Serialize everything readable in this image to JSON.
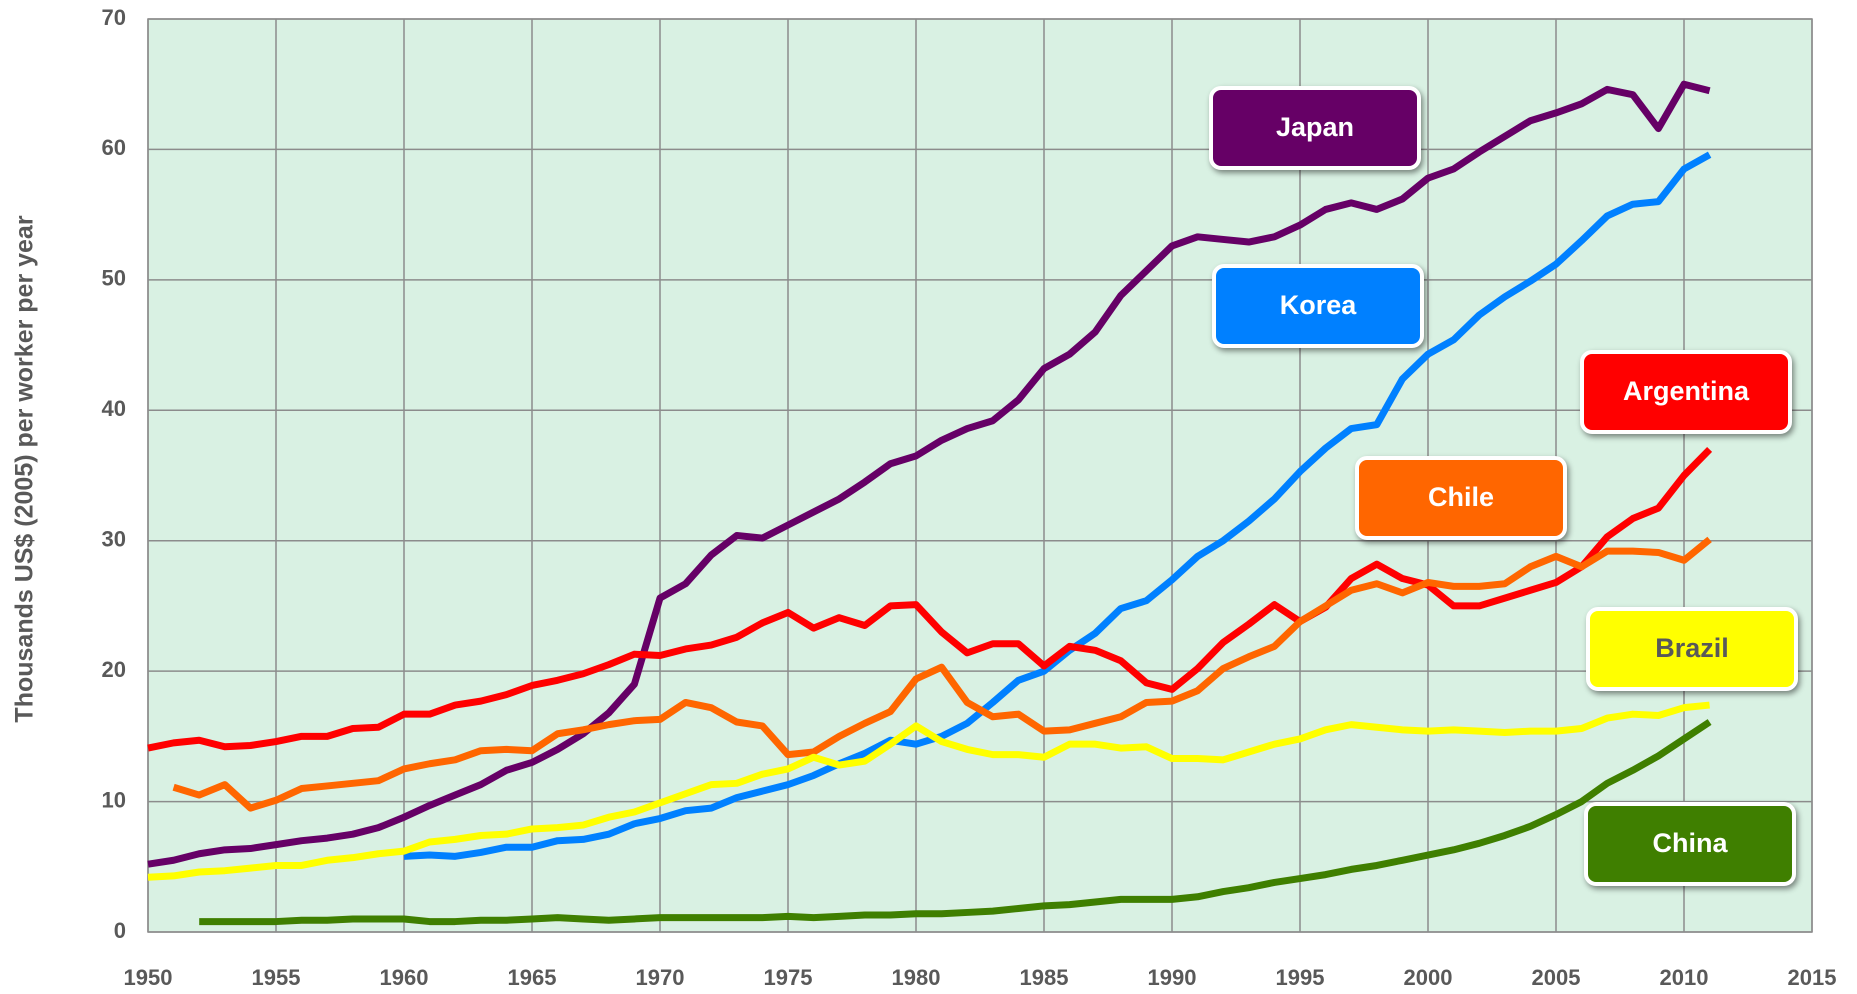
{
  "chart_data": {
    "type": "line",
    "ylabel": "Thousands US$ (2005) per worker per year",
    "xlim": [
      1950,
      2015
    ],
    "xticks": [
      1950,
      1955,
      1960,
      1965,
      1970,
      1975,
      1980,
      1985,
      1990,
      1995,
      2000,
      2005,
      2010,
      2015
    ],
    "ylim": [
      0,
      70
    ],
    "yticks": [
      0,
      10,
      20,
      30,
      40,
      50,
      60,
      70
    ],
    "grid": true,
    "x": [
      1950,
      1951,
      1952,
      1953,
      1954,
      1955,
      1956,
      1957,
      1958,
      1959,
      1960,
      1961,
      1962,
      1963,
      1964,
      1965,
      1966,
      1967,
      1968,
      1969,
      1970,
      1971,
      1972,
      1973,
      1974,
      1975,
      1976,
      1977,
      1978,
      1979,
      1980,
      1981,
      1982,
      1983,
      1984,
      1985,
      1986,
      1987,
      1988,
      1989,
      1990,
      1991,
      1992,
      1993,
      1994,
      1995,
      1996,
      1997,
      1998,
      1999,
      2000,
      2001,
      2002,
      2003,
      2004,
      2005,
      2006,
      2007,
      2008,
      2009,
      2010,
      2011
    ],
    "series": [
      {
        "name": "Japan",
        "color": "#660066",
        "values": [
          5.2,
          5.5,
          6.0,
          6.3,
          6.4,
          6.7,
          7.0,
          7.2,
          7.5,
          8.0,
          8.8,
          9.7,
          10.5,
          11.3,
          12.4,
          13.0,
          14.0,
          15.2,
          16.8,
          19.0,
          25.6,
          26.7,
          28.9,
          30.4,
          30.2,
          31.2,
          32.2,
          33.2,
          34.5,
          35.9,
          36.5,
          37.7,
          38.6,
          39.2,
          40.8,
          43.2,
          44.3,
          46.0,
          48.8,
          50.7,
          52.6,
          53.3,
          53.1,
          52.9,
          53.3,
          54.2,
          55.4,
          55.9,
          55.4,
          56.2,
          57.8,
          58.5,
          59.8,
          61.0,
          62.2,
          62.8,
          63.5,
          64.6,
          64.2,
          61.6,
          65.0,
          64.5
        ]
      },
      {
        "name": "Korea",
        "color": "#0080ff",
        "values": [
          null,
          null,
          null,
          null,
          null,
          null,
          null,
          null,
          null,
          null,
          5.8,
          5.9,
          5.8,
          6.1,
          6.5,
          6.5,
          7.0,
          7.1,
          7.5,
          8.3,
          8.7,
          9.3,
          9.5,
          10.3,
          10.8,
          11.3,
          12.0,
          12.9,
          13.7,
          14.7,
          14.4,
          15.0,
          16.0,
          17.6,
          19.3,
          20.0,
          21.6,
          22.9,
          24.8,
          25.4,
          27.0,
          28.8,
          30.0,
          31.5,
          33.2,
          35.3,
          37.1,
          38.6,
          38.9,
          42.4,
          44.3,
          45.4,
          47.3,
          48.7,
          49.9,
          51.2,
          53.0,
          54.9,
          55.8,
          56.0,
          58.5,
          59.6
        ]
      },
      {
        "name": "Argentina",
        "color": "#ff0000",
        "values": [
          14.1,
          14.5,
          14.7,
          14.2,
          14.3,
          14.6,
          15.0,
          15.0,
          15.6,
          15.7,
          16.7,
          16.7,
          17.4,
          17.7,
          18.2,
          18.9,
          19.3,
          19.8,
          20.5,
          21.3,
          21.2,
          21.7,
          22.0,
          22.6,
          23.7,
          24.5,
          23.3,
          24.1,
          23.5,
          25.0,
          25.1,
          23.0,
          21.4,
          22.1,
          22.1,
          20.4,
          21.9,
          21.6,
          20.8,
          19.1,
          18.6,
          20.2,
          22.2,
          23.6,
          25.1,
          23.8,
          24.9,
          27.1,
          28.2,
          27.1,
          26.6,
          25.0,
          25.0,
          25.6,
          26.2,
          26.8,
          28.0,
          30.3,
          31.7,
          32.5,
          35.0,
          37.0
        ]
      },
      {
        "name": "Chile",
        "color": "#ff6600",
        "values": [
          null,
          11.1,
          10.5,
          11.3,
          9.5,
          10.1,
          11.0,
          11.2,
          11.4,
          11.6,
          12.5,
          12.9,
          13.2,
          13.9,
          14.0,
          13.9,
          15.2,
          15.5,
          15.9,
          16.2,
          16.3,
          17.6,
          17.2,
          16.1,
          15.8,
          13.6,
          13.8,
          15.0,
          16.0,
          16.9,
          19.4,
          20.3,
          17.6,
          16.5,
          16.7,
          15.4,
          15.5,
          16.0,
          16.5,
          17.6,
          17.7,
          18.5,
          20.2,
          21.1,
          21.9,
          23.8,
          25.0,
          26.2,
          26.7,
          26.0,
          26.8,
          26.5,
          26.5,
          26.7,
          28.0,
          28.8,
          28.0,
          29.2,
          29.2,
          29.1,
          28.5,
          30.1
        ]
      },
      {
        "name": "Brazil",
        "color": "#ffff00",
        "values": [
          4.2,
          4.3,
          4.6,
          4.7,
          4.9,
          5.1,
          5.1,
          5.5,
          5.7,
          6.0,
          6.2,
          6.9,
          7.1,
          7.4,
          7.5,
          7.9,
          8.0,
          8.2,
          8.8,
          9.2,
          9.9,
          10.6,
          11.3,
          11.4,
          12.1,
          12.5,
          13.4,
          12.8,
          13.1,
          14.4,
          15.8,
          14.6,
          14.0,
          13.6,
          13.6,
          13.4,
          14.4,
          14.4,
          14.1,
          14.2,
          13.3,
          13.3,
          13.2,
          13.8,
          14.4,
          14.8,
          15.5,
          15.9,
          15.7,
          15.5,
          15.4,
          15.5,
          15.4,
          15.3,
          15.4,
          15.4,
          15.6,
          16.4,
          16.7,
          16.6,
          17.2,
          17.4
        ]
      },
      {
        "name": "China",
        "color": "#3f7f00",
        "values": [
          null,
          null,
          0.8,
          0.8,
          0.8,
          0.8,
          0.9,
          0.9,
          1.0,
          1.0,
          1.0,
          0.8,
          0.8,
          0.9,
          0.9,
          1.0,
          1.1,
          1.0,
          0.9,
          1.0,
          1.1,
          1.1,
          1.1,
          1.1,
          1.1,
          1.2,
          1.1,
          1.2,
          1.3,
          1.3,
          1.4,
          1.4,
          1.5,
          1.6,
          1.8,
          2.0,
          2.1,
          2.3,
          2.5,
          2.5,
          2.5,
          2.7,
          3.1,
          3.4,
          3.8,
          4.1,
          4.4,
          4.8,
          5.1,
          5.5,
          5.9,
          6.3,
          6.8,
          7.4,
          8.1,
          9.0,
          10.0,
          11.4,
          12.4,
          13.5,
          14.8,
          16.1
        ]
      }
    ]
  }
}
